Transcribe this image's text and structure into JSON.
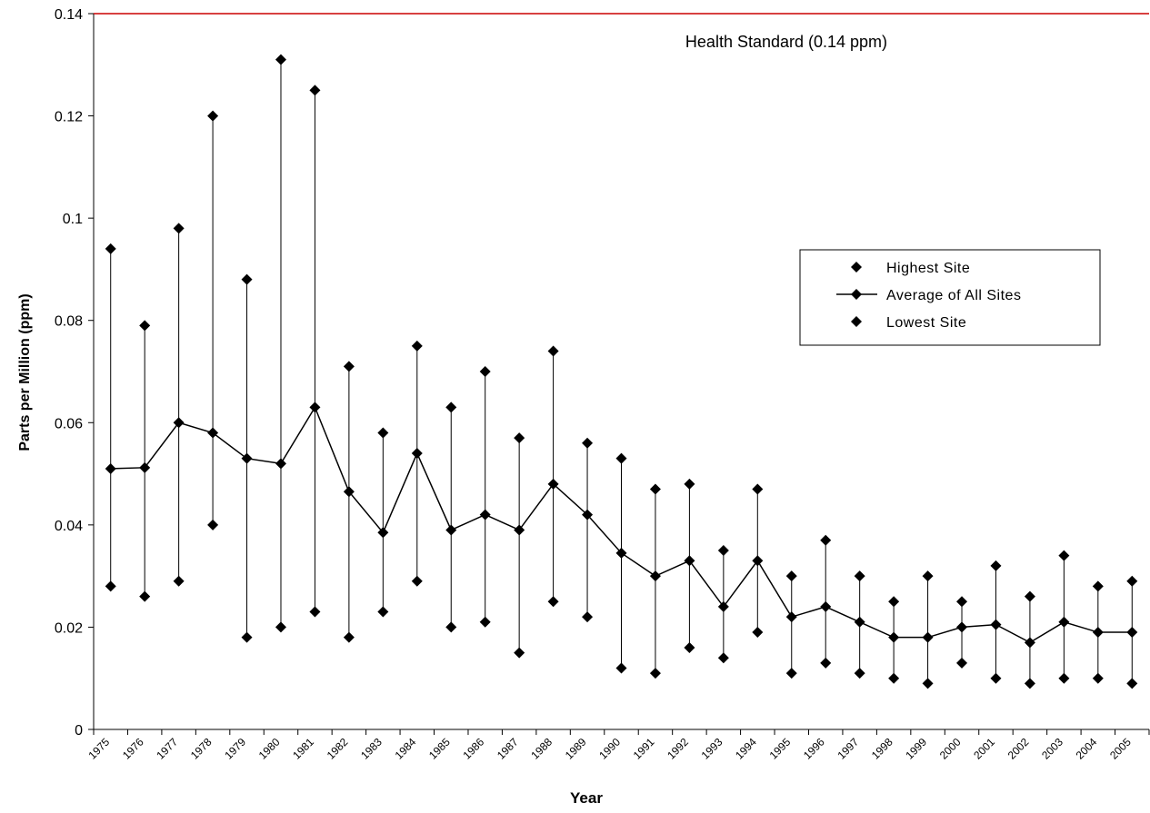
{
  "chart_data": {
    "type": "hilo",
    "x_label": "Year",
    "y_label": "Parts per Million (ppm)",
    "categories": [
      "1975",
      "1976",
      "1977",
      "1978",
      "1979",
      "1980",
      "1981",
      "1982",
      "1983",
      "1984",
      "1985",
      "1986",
      "1987",
      "1988",
      "1989",
      "1990",
      "1991",
      "1992",
      "1993",
      "1994",
      "1995",
      "1996",
      "1997",
      "1998",
      "1999",
      "2000",
      "2001",
      "2002",
      "2003",
      "2004",
      "2005"
    ],
    "series": [
      {
        "name": "Highest Site",
        "color": "#000000",
        "style": "markers",
        "values": [
          0.094,
          0.079,
          0.098,
          0.12,
          0.088,
          0.131,
          0.125,
          0.071,
          0.058,
          0.075,
          0.063,
          0.07,
          0.057,
          0.074,
          0.056,
          0.053,
          0.047,
          0.048,
          0.035,
          0.047,
          0.03,
          0.037,
          0.03,
          0.025,
          0.03,
          0.025,
          0.032,
          0.026,
          0.034,
          0.028,
          0.029
        ]
      },
      {
        "name": "Average of All Sites",
        "color": "#000000",
        "style": "line",
        "values": [
          0.051,
          0.0512,
          0.06,
          0.058,
          0.053,
          0.052,
          0.063,
          0.0465,
          0.0385,
          0.054,
          0.039,
          0.042,
          0.039,
          0.048,
          0.042,
          0.0345,
          0.03,
          0.033,
          0.024,
          0.033,
          0.022,
          0.024,
          0.021,
          0.018,
          0.018,
          0.02,
          0.0205,
          0.017,
          0.021,
          0.019,
          0.019
        ]
      },
      {
        "name": "Lowest Site",
        "color": "#000000",
        "style": "markers",
        "values": [
          0.028,
          0.026,
          0.029,
          0.04,
          0.018,
          0.02,
          0.023,
          0.018,
          0.023,
          0.029,
          0.02,
          0.021,
          0.015,
          0.025,
          0.022,
          0.012,
          0.011,
          0.016,
          0.014,
          0.019,
          0.011,
          0.013,
          0.011,
          0.01,
          0.009,
          0.013,
          0.01,
          0.009,
          0.01,
          0.01,
          0.009
        ]
      }
    ],
    "ylim": [
      0,
      0.14
    ],
    "yticks": [
      0,
      0.02,
      0.04,
      0.06,
      0.08,
      0.1,
      0.12,
      0.14
    ],
    "standard": {
      "value": 0.14,
      "label": "Health Standard (0.14 ppm)",
      "color": "#cc0000"
    },
    "legend": "right"
  }
}
